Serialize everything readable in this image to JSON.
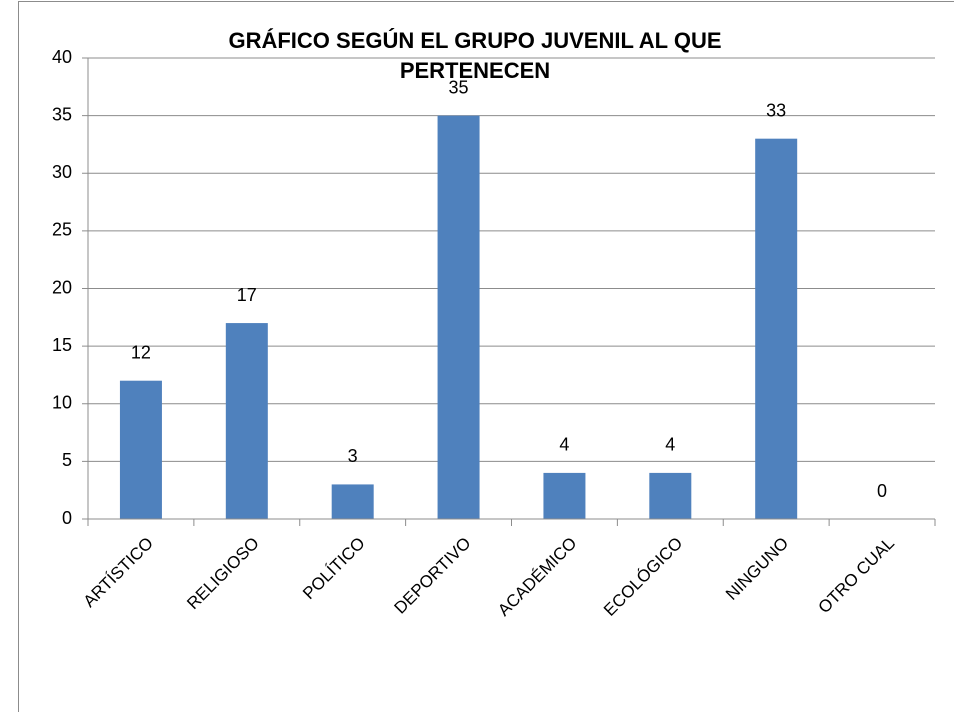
{
  "chart_data": {
    "type": "bar",
    "title": "GRÁFICO SEGÚN EL GRUPO JUVENIL AL QUE PERTENECEN",
    "categories": [
      "ARTÍSTICO",
      "RELIGIOSO",
      "POLÍTICO",
      "DEPORTIVO",
      "ACADÉMICO",
      "ECOLÓGICO",
      "NINGUNO",
      "OTRO CUAL"
    ],
    "values": [
      12,
      17,
      3,
      35,
      4,
      4,
      33,
      0
    ],
    "color": "#4f81bd",
    "ylim": [
      0,
      40
    ],
    "yticks": [
      0,
      5,
      10,
      15,
      20,
      25,
      30,
      35,
      40
    ],
    "grid": true
  }
}
